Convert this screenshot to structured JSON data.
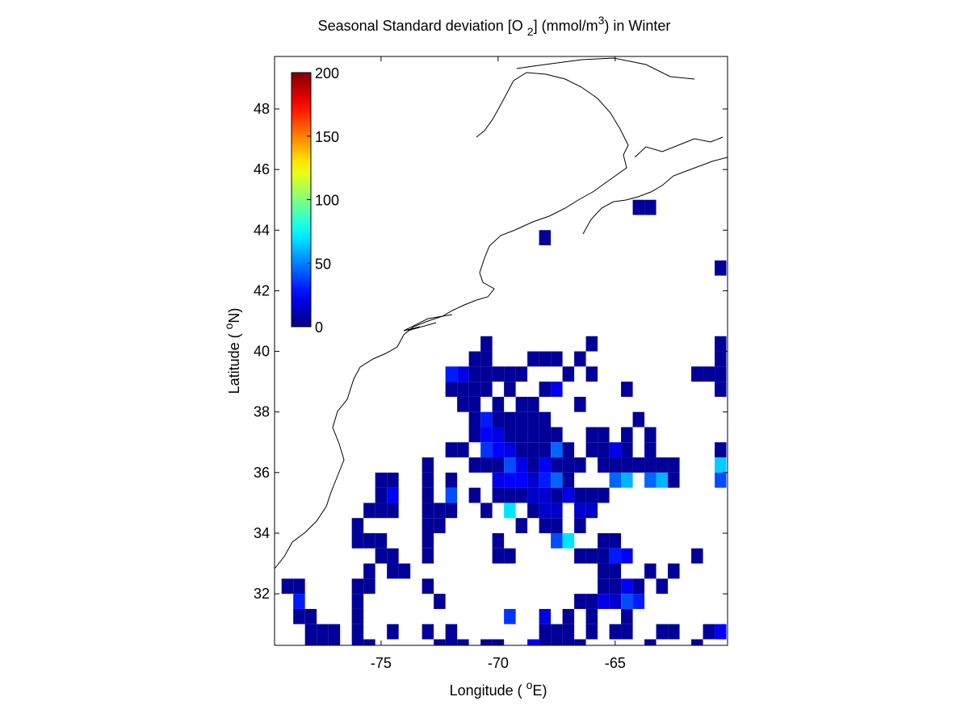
{
  "chart_data": {
    "type": "heatmap",
    "title": [
      "Seasonal Standard deviation [O ",
      "2",
      "] (mmol/m",
      "3",
      ") in  Winter"
    ],
    "xlabel": [
      "Longitude ( ",
      "o",
      "E)"
    ],
    "ylabel": [
      "Latitude ( ",
      "o",
      "N)"
    ],
    "xlim": [
      -79.55,
      -60.2
    ],
    "ylim": [
      30.3,
      49.73
    ],
    "xticks": [
      -75,
      -70,
      -65
    ],
    "yticks": [
      32,
      34,
      36,
      38,
      40,
      42,
      44,
      46,
      48
    ],
    "colormap": "jet",
    "clim": [
      0,
      200
    ],
    "cticks": [
      0,
      50,
      100,
      150,
      200
    ],
    "cell_size": 0.5,
    "rows": [
      {
        "y": 44.75,
        "x": [
          -64,
          -63.5
        ],
        "values": [
          5,
          5
        ]
      },
      {
        "y": 43.75,
        "x": [
          -68
        ],
        "values": [
          5
        ]
      },
      {
        "y": 42.75,
        "x": [
          -60.5
        ],
        "values": [
          5
        ]
      },
      {
        "y": 40.25,
        "x": [
          -70.5,
          -66,
          -60.5
        ],
        "values": [
          5,
          5,
          5
        ]
      },
      {
        "y": 39.75,
        "x": [
          -71,
          -70.5,
          -68.5,
          -68,
          -67.5,
          -66.5,
          -60.5
        ],
        "values": [
          5,
          5,
          5,
          5,
          5,
          5,
          5
        ]
      },
      {
        "y": 39.25,
        "x": [
          -72,
          -71.5,
          -71,
          -70.5,
          -70,
          -69.5,
          -69,
          -67,
          -66,
          -61.5,
          -61,
          -60.5
        ],
        "values": [
          30,
          20,
          5,
          5,
          5,
          5,
          5,
          5,
          5,
          5,
          5,
          5
        ]
      },
      {
        "y": 38.75,
        "x": [
          -72,
          -71.5,
          -71,
          -70.5,
          -69.5,
          -68,
          -67.5,
          -64.5,
          -60.5
        ],
        "values": [
          5,
          5,
          5,
          5,
          5,
          5,
          20,
          5,
          5
        ]
      },
      {
        "y": 38.25,
        "x": [
          -71.5,
          -71,
          -70,
          -69,
          -68.5,
          -66.5
        ],
        "values": [
          5,
          5,
          5,
          5,
          5,
          5
        ]
      },
      {
        "y": 37.75,
        "x": [
          -71,
          -70.5,
          -70,
          -69.5,
          -69,
          -68.5,
          -68,
          -64
        ],
        "values": [
          5,
          30,
          5,
          5,
          5,
          5,
          5,
          5
        ]
      },
      {
        "y": 37.25,
        "x": [
          -71,
          -70.5,
          -70,
          -69.5,
          -69,
          -68.5,
          -68,
          -67.5,
          -66,
          -65.5,
          -64.5,
          -63.5
        ],
        "values": [
          5,
          25,
          20,
          5,
          5,
          5,
          5,
          5,
          5,
          5,
          5,
          5
        ]
      },
      {
        "y": 36.75,
        "x": [
          -72,
          -71.5,
          -70.5,
          -70,
          -69.5,
          -69,
          -68.5,
          -68,
          -67.5,
          -67,
          -66,
          -65.5,
          -65,
          -64.5,
          -63.5,
          -60.5
        ],
        "values": [
          5,
          5,
          35,
          25,
          20,
          5,
          5,
          5,
          45,
          5,
          5,
          5,
          20,
          5,
          5,
          5
        ]
      },
      {
        "y": 36.25,
        "x": [
          -73,
          -71,
          -70.5,
          -70,
          -69.5,
          -69,
          -68.5,
          -68,
          -67.5,
          -67,
          -66.5,
          -65.5,
          -65,
          -64.5,
          -64,
          -63.5,
          -63,
          -62.5,
          -60.5
        ],
        "values": [
          5,
          5,
          5,
          5,
          40,
          20,
          5,
          25,
          5,
          5,
          5,
          5,
          5,
          5,
          5,
          5,
          5,
          5,
          65
        ]
      },
      {
        "y": 35.75,
        "x": [
          -75,
          -74.5,
          -73,
          -72,
          -70,
          -69.5,
          -69,
          -68.5,
          -68,
          -67.5,
          -67,
          -65,
          -64.5,
          -63.5,
          -63,
          -62.5,
          -60.5
        ],
        "values": [
          5,
          5,
          5,
          5,
          20,
          25,
          25,
          15,
          30,
          45,
          5,
          45,
          60,
          45,
          60,
          5,
          40
        ]
      },
      {
        "y": 35.25,
        "x": [
          -75,
          -74.5,
          -73,
          -72,
          -71,
          -70,
          -69.5,
          -69,
          -68.5,
          -68,
          -67.5,
          -67,
          -66.5,
          -66,
          -65.5
        ],
        "values": [
          5,
          25,
          5,
          40,
          5,
          5,
          5,
          5,
          15,
          15,
          5,
          20,
          5,
          5,
          5
        ]
      },
      {
        "y": 34.75,
        "x": [
          -75.5,
          -75,
          -74.5,
          -73,
          -72.5,
          -72,
          -70.5,
          -69.5,
          -68.5,
          -68,
          -67.5,
          -66.5,
          -66
        ],
        "values": [
          5,
          5,
          5,
          5,
          5,
          5,
          5,
          70,
          5,
          15,
          15,
          15,
          15
        ]
      },
      {
        "y": 34.25,
        "x": [
          -76,
          -73,
          -72.5,
          -69,
          -68,
          -67.5,
          -66.5
        ],
        "values": [
          5,
          5,
          5,
          5,
          5,
          5,
          5
        ]
      },
      {
        "y": 33.75,
        "x": [
          -76,
          -75.5,
          -75,
          -73,
          -70,
          -67.5,
          -67,
          -65.5,
          -65
        ],
        "values": [
          5,
          5,
          5,
          5,
          5,
          40,
          70,
          5,
          5
        ]
      },
      {
        "y": 33.25,
        "x": [
          -75,
          -74.5,
          -73,
          -70,
          -69.5,
          -66.5,
          -66,
          -65.5,
          -65,
          -64.5,
          -61.5
        ],
        "values": [
          5,
          5,
          5,
          5,
          5,
          5,
          5,
          5,
          30,
          25,
          5
        ]
      },
      {
        "y": 32.75,
        "x": [
          -75.5,
          -74.5,
          -74,
          -65.5,
          -65,
          -63.5,
          -62.5
        ],
        "values": [
          5,
          5,
          5,
          5,
          5,
          5,
          5
        ]
      },
      {
        "y": 32.25,
        "x": [
          -79,
          -78.5,
          -76,
          -75.5,
          -73,
          -65.5,
          -65,
          -64.5,
          -64,
          -63
        ],
        "values": [
          5,
          5,
          5,
          5,
          5,
          5,
          5,
          25,
          5,
          5
        ]
      },
      {
        "y": 31.75,
        "x": [
          -78.5,
          -76,
          -72.5,
          -66.5,
          -66,
          -65.5,
          -65,
          -64.5,
          -64
        ],
        "values": [
          30,
          5,
          5,
          5,
          5,
          20,
          15,
          40,
          30
        ]
      },
      {
        "y": 31.25,
        "x": [
          -78.5,
          -78,
          -76,
          -69.5,
          -68,
          -67,
          -66,
          -64.5
        ],
        "values": [
          5,
          5,
          5,
          35,
          20,
          5,
          5,
          5
        ]
      },
      {
        "y": 30.75,
        "x": [
          -78,
          -77.5,
          -77,
          -76,
          -74.5,
          -73,
          -72,
          -68,
          -67.5,
          -67,
          -66,
          -65,
          -64.5,
          -63,
          -62.5,
          -61,
          -60.5
        ],
        "values": [
          5,
          5,
          5,
          5,
          5,
          5,
          5,
          5,
          5,
          5,
          5,
          5,
          5,
          5,
          5,
          5,
          25
        ]
      },
      {
        "y": 30.25,
        "x": [
          -78,
          -77.5,
          -77,
          -76,
          -75.5,
          -72.5,
          -72,
          -71.5,
          -70.5,
          -70,
          -68.5,
          -68,
          -67.5,
          -67,
          -66.5,
          -63.5,
          -61.5
        ],
        "values": [
          5,
          5,
          5,
          5,
          5,
          5,
          5,
          5,
          5,
          5,
          25,
          5,
          5,
          5,
          5,
          5,
          5
        ]
      }
    ]
  }
}
